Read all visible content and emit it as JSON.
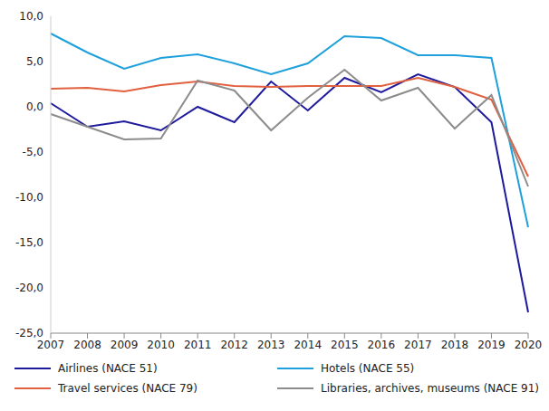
{
  "chart_data": {
    "type": "line",
    "categories": [
      "2007",
      "2008",
      "2009",
      "2010",
      "2011",
      "2012",
      "2013",
      "2014",
      "2015",
      "2016",
      "2017",
      "2018",
      "2019",
      "2020"
    ],
    "series": [
      {
        "name": "Airlines (NACE 51)",
        "color": "#1e1a9c",
        "values": [
          0.4,
          -2.2,
          -1.6,
          -2.6,
          0.0,
          -1.7,
          2.8,
          -0.4,
          3.2,
          1.6,
          3.6,
          2.2,
          -1.7,
          -22.7
        ]
      },
      {
        "name": "Hotels (NACE 55)",
        "color": "#1ea0dc",
        "values": [
          8.1,
          6.0,
          4.2,
          5.4,
          5.8,
          4.8,
          3.6,
          4.8,
          7.8,
          7.6,
          5.7,
          5.7,
          5.4,
          -13.3
        ]
      },
      {
        "name": "Travel services (NACE 79)",
        "color": "#e0603f",
        "values": [
          2.0,
          2.1,
          1.7,
          2.4,
          2.8,
          2.3,
          2.2,
          2.3,
          2.3,
          2.3,
          3.2,
          2.2,
          0.8,
          -7.7
        ]
      },
      {
        "name": "Libraries, archives, museums (NACE 91)",
        "color": "#8c8c8c",
        "values": [
          -0.8,
          -2.2,
          -3.6,
          -3.5,
          2.9,
          1.8,
          -2.6,
          1.0,
          4.1,
          0.7,
          2.1,
          -2.4,
          1.3,
          -8.8
        ]
      }
    ],
    "ylim": [
      -25,
      10
    ],
    "yticks": [
      {
        "value": -25,
        "label": "-25,0"
      },
      {
        "value": -20,
        "label": "-20,0"
      },
      {
        "value": -15,
        "label": "-15,0"
      },
      {
        "value": -10,
        "label": "-10,0"
      },
      {
        "value": -5,
        "label": "-5,0"
      },
      {
        "value": 0,
        "label": "0,0"
      },
      {
        "value": 5,
        "label": "5,0"
      },
      {
        "value": 10,
        "label": "10,0"
      }
    ],
    "grid": false,
    "legend": "bottom"
  }
}
